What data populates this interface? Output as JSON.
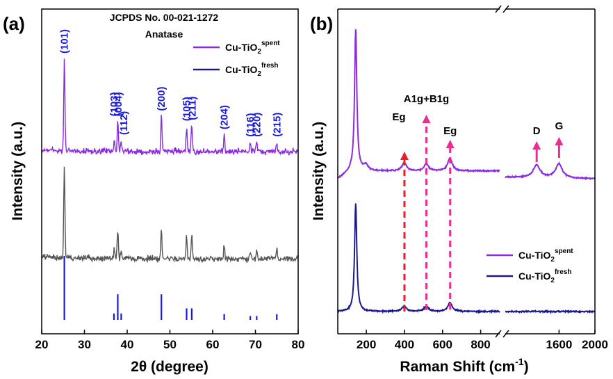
{
  "chart_data": [
    {
      "panel": "(a)",
      "type": "line",
      "xlabel_main": "2θ (degree)",
      "ylabel": "Intensity (a.u.)",
      "xlim": [
        20,
        80
      ],
      "xticks": [
        "20",
        "30",
        "40",
        "50",
        "60",
        "70",
        "80"
      ],
      "annotations": [
        "JCPDS No. 00-021-1272",
        "Anatase"
      ],
      "series": [
        {
          "name_main": "Cu-TiO",
          "name_sub": "2",
          "name_sup": "spent",
          "color": "#8a2be2",
          "peaks": [
            {
              "x": 25.3,
              "h": 1.0
            },
            {
              "x": 37.0,
              "h": 0.12
            },
            {
              "x": 37.8,
              "h": 0.32
            },
            {
              "x": 38.6,
              "h": 0.12
            },
            {
              "x": 48.0,
              "h": 0.38
            },
            {
              "x": 53.9,
              "h": 0.27
            },
            {
              "x": 55.1,
              "h": 0.28
            },
            {
              "x": 62.7,
              "h": 0.18
            },
            {
              "x": 68.8,
              "h": 0.1
            },
            {
              "x": 70.3,
              "h": 0.1
            },
            {
              "x": 75.0,
              "h": 0.1
            }
          ]
        },
        {
          "name_main": "Cu-TiO",
          "name_sub": "2",
          "name_sup": "fresh",
          "color": "#555555",
          "peaks": [
            {
              "x": 25.3,
              "h": 1.0
            },
            {
              "x": 37.0,
              "h": 0.1
            },
            {
              "x": 37.8,
              "h": 0.3
            },
            {
              "x": 38.6,
              "h": 0.1
            },
            {
              "x": 48.0,
              "h": 0.33
            },
            {
              "x": 53.9,
              "h": 0.25
            },
            {
              "x": 55.1,
              "h": 0.26
            },
            {
              "x": 62.7,
              "h": 0.16
            },
            {
              "x": 68.8,
              "h": 0.1
            },
            {
              "x": 70.3,
              "h": 0.11
            },
            {
              "x": 75.0,
              "h": 0.11
            }
          ]
        }
      ],
      "legend_colors": [
        "#8a2be2",
        "#1a1a8c"
      ],
      "reference_peaks": [
        {
          "x": 25.3,
          "h": 1.0
        },
        {
          "x": 36.9,
          "h": 0.1
        },
        {
          "x": 37.8,
          "h": 0.4
        },
        {
          "x": 38.6,
          "h": 0.1
        },
        {
          "x": 48.0,
          "h": 0.4
        },
        {
          "x": 53.9,
          "h": 0.18
        },
        {
          "x": 55.1,
          "h": 0.18
        },
        {
          "x": 62.7,
          "h": 0.09
        },
        {
          "x": 68.8,
          "h": 0.06
        },
        {
          "x": 70.3,
          "h": 0.06
        },
        {
          "x": 75.0,
          "h": 0.09
        }
      ],
      "hkl_labels": [
        {
          "text": "(101)",
          "x": 25.3
        },
        {
          "text": "(103)",
          "x": 36.9
        },
        {
          "text": "(004)",
          "x": 37.9
        },
        {
          "text": "(112)",
          "x": 39.2
        },
        {
          "text": "(200)",
          "x": 48.0
        },
        {
          "text": "(105)",
          "x": 53.9
        },
        {
          "text": "(211)",
          "x": 55.2
        },
        {
          "text": "(204)",
          "x": 62.7
        },
        {
          "text": "(116)",
          "x": 68.8
        },
        {
          "text": "(220)",
          "x": 70.3
        },
        {
          "text": "(215)",
          "x": 75.0
        }
      ]
    },
    {
      "panel": "(b)",
      "type": "line",
      "xlabel_main": "Raman Shift (cm",
      "xlabel_sup": "-1",
      "xlabel_tail": ")",
      "ylabel": "Intensity (a.u.)",
      "x_segments": [
        [
          50,
          900
        ],
        [
          1000,
          2000
        ]
      ],
      "xticks": [
        "200",
        "400",
        "600",
        "800",
        "1600",
        "2000"
      ],
      "peak_labels": [
        {
          "text": "Eg",
          "x": 400
        },
        {
          "text": "A1g+B1g",
          "x": 515
        },
        {
          "text": "Eg",
          "x": 640
        },
        {
          "text": "D",
          "x": 1350
        },
        {
          "text": "G",
          "x": 1600
        }
      ],
      "series": [
        {
          "name_main": "Cu-TiO",
          "name_sub": "2",
          "name_sup": "spent",
          "color": "#8a2be2",
          "peaks": [
            {
              "x": 144,
              "h": 1.0
            },
            {
              "x": 197,
              "h": 0.04
            },
            {
              "x": 399,
              "h": 0.06
            },
            {
              "x": 515,
              "h": 0.05
            },
            {
              "x": 639,
              "h": 0.09
            },
            {
              "x": 1350,
              "h": 0.09
            },
            {
              "x": 1598,
              "h": 0.1
            }
          ]
        },
        {
          "name_main": "Cu-TiO",
          "name_sub": "2",
          "name_sup": "fresh",
          "color": "#1a1a8c",
          "peaks": [
            {
              "x": 144,
              "h": 1.0
            },
            {
              "x": 399,
              "h": 0.05
            },
            {
              "x": 515,
              "h": 0.05
            },
            {
              "x": 639,
              "h": 0.08
            }
          ]
        }
      ]
    }
  ]
}
